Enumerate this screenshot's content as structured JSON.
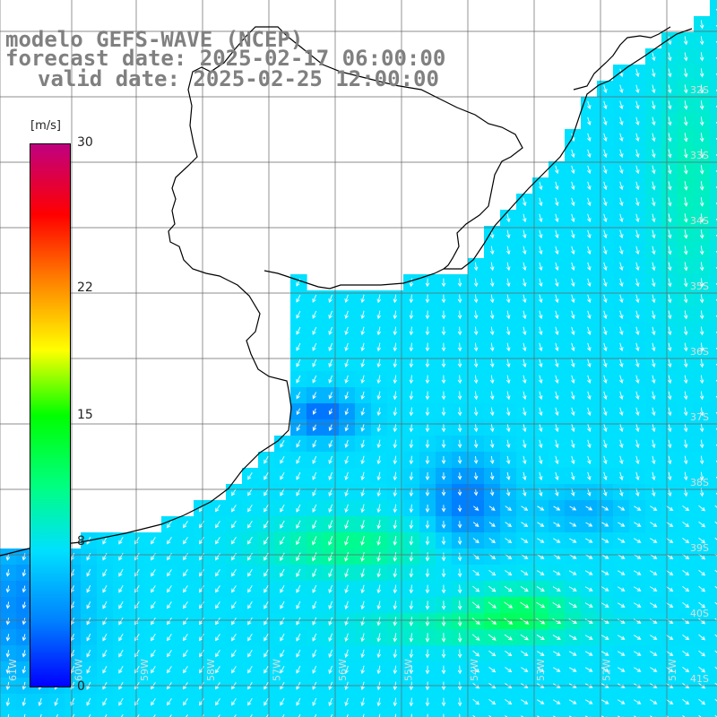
{
  "title": {
    "line1": "modelo GEFS-WAVE (NCEP)",
    "line2": "forecast date: 2025-02-17 06:00:00",
    "line3": "valid date: 2025-02-25 12:00:00"
  },
  "colorbar": {
    "unit": "[m/s]",
    "ticks": [
      {
        "label": "30",
        "value": 30
      },
      {
        "label": "22",
        "value": 22
      },
      {
        "label": "15",
        "value": 15
      },
      {
        "label": "8",
        "value": 8
      },
      {
        "label": "0",
        "value": 0
      }
    ],
    "colors": [
      "#0000ff",
      "#0080ff",
      "#00e0ff",
      "#00ff80",
      "#00ff00",
      "#ffff00",
      "#ff8000",
      "#ff0000",
      "#c00080"
    ]
  },
  "lat_labels": [
    "32S",
    "33S",
    "34S",
    "35S",
    "36S",
    "37S",
    "38S",
    "39S",
    "40S",
    "41S"
  ],
  "lon_labels": [
    "61W",
    "60W",
    "59W",
    "58W",
    "57W",
    "56W",
    "55W",
    "54W",
    "53W",
    "52W",
    "51W"
  ],
  "colors": {
    "land": "#ffffff",
    "grid": "#666666",
    "coast": "#000000",
    "arrow": "#ffffff"
  }
}
